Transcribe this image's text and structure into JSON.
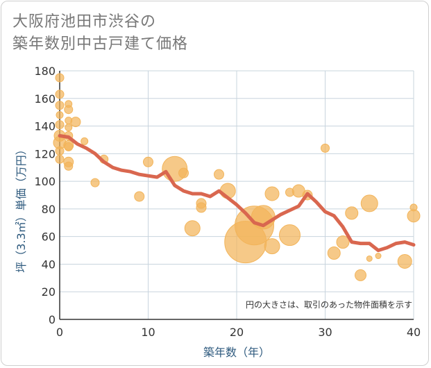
{
  "title_line1": "大阪府池田市渋谷の",
  "title_line2": "築年数別中古戸建て価格",
  "chart_data": {
    "type": "scatter+line",
    "xlabel": "築年数（年）",
    "ylabel": "坪（3.3㎡）単価（万円）",
    "xlim": [
      0,
      40
    ],
    "ylim": [
      0,
      180
    ],
    "xticks": [
      0,
      10,
      20,
      30,
      40
    ],
    "yticks": [
      0,
      20,
      40,
      60,
      80,
      100,
      120,
      140,
      160,
      180
    ],
    "grid": true,
    "note": "円の大きさは、取引のあった物件面積を示す",
    "colors": {
      "bubble": "#f2b45a",
      "line": "#d9674f",
      "grid": "#c8d4de",
      "axis": "#333333"
    },
    "trend": {
      "x": [
        0,
        1,
        2,
        3,
        4,
        5,
        6,
        7,
        8,
        9,
        10,
        11,
        12,
        13,
        14,
        15,
        16,
        17,
        18,
        19,
        20,
        21,
        22,
        23,
        24,
        25,
        26,
        27,
        28,
        29,
        30,
        31,
        32,
        33,
        34,
        35,
        36,
        37,
        38,
        39,
        40
      ],
      "y": [
        133,
        132,
        127,
        124,
        120,
        114,
        110,
        108,
        107,
        105,
        104,
        103,
        107,
        97,
        93,
        91,
        91,
        89,
        93,
        88,
        83,
        77,
        70,
        68,
        72,
        76,
        79,
        82,
        91,
        85,
        78,
        75,
        67,
        56,
        55,
        55,
        50,
        52,
        55,
        56,
        54
      ]
    },
    "bubbles": [
      {
        "x": 0,
        "y": 175,
        "s": 6
      },
      {
        "x": 0,
        "y": 163,
        "s": 6
      },
      {
        "x": 0,
        "y": 155,
        "s": 6
      },
      {
        "x": 0,
        "y": 148,
        "s": 5
      },
      {
        "x": 0,
        "y": 141,
        "s": 6
      },
      {
        "x": 0,
        "y": 133,
        "s": 8
      },
      {
        "x": 0,
        "y": 128,
        "s": 9
      },
      {
        "x": 0,
        "y": 122,
        "s": 6
      },
      {
        "x": 0,
        "y": 116,
        "s": 6
      },
      {
        "x": 1,
        "y": 156,
        "s": 5
      },
      {
        "x": 1,
        "y": 152,
        "s": 6
      },
      {
        "x": 1,
        "y": 144,
        "s": 5
      },
      {
        "x": 1,
        "y": 139,
        "s": 5
      },
      {
        "x": 1,
        "y": 133,
        "s": 6
      },
      {
        "x": 1,
        "y": 126,
        "s": 7
      },
      {
        "x": 1,
        "y": 125,
        "s": 6
      },
      {
        "x": 1,
        "y": 114,
        "s": 7
      },
      {
        "x": 1,
        "y": 111,
        "s": 6
      },
      {
        "x": 1.8,
        "y": 143,
        "s": 7
      },
      {
        "x": 2.8,
        "y": 129,
        "s": 5
      },
      {
        "x": 4,
        "y": 99,
        "s": 6
      },
      {
        "x": 5,
        "y": 116,
        "s": 6
      },
      {
        "x": 9,
        "y": 89,
        "s": 7
      },
      {
        "x": 10,
        "y": 114,
        "s": 7
      },
      {
        "x": 13,
        "y": 109,
        "s": 18
      },
      {
        "x": 14,
        "y": 106,
        "s": 7
      },
      {
        "x": 15,
        "y": 66,
        "s": 11
      },
      {
        "x": 16,
        "y": 84,
        "s": 7
      },
      {
        "x": 16,
        "y": 81,
        "s": 7
      },
      {
        "x": 18,
        "y": 105,
        "s": 7
      },
      {
        "x": 19,
        "y": 93,
        "s": 11
      },
      {
        "x": 21,
        "y": 56,
        "s": 30
      },
      {
        "x": 22,
        "y": 68,
        "s": 28
      },
      {
        "x": 23,
        "y": 74,
        "s": 17
      },
      {
        "x": 24,
        "y": 91,
        "s": 10
      },
      {
        "x": 24,
        "y": 53,
        "s": 11
      },
      {
        "x": 26,
        "y": 92,
        "s": 6
      },
      {
        "x": 26,
        "y": 61,
        "s": 15
      },
      {
        "x": 27,
        "y": 93,
        "s": 9
      },
      {
        "x": 28,
        "y": 90,
        "s": 7
      },
      {
        "x": 30,
        "y": 124,
        "s": 6
      },
      {
        "x": 31,
        "y": 48,
        "s": 9
      },
      {
        "x": 32,
        "y": 56,
        "s": 9
      },
      {
        "x": 33,
        "y": 77,
        "s": 9
      },
      {
        "x": 34,
        "y": 32,
        "s": 8
      },
      {
        "x": 35,
        "y": 84,
        "s": 12
      },
      {
        "x": 35,
        "y": 44,
        "s": 4
      },
      {
        "x": 36,
        "y": 46,
        "s": 4
      },
      {
        "x": 39,
        "y": 42,
        "s": 10
      },
      {
        "x": 40,
        "y": 75,
        "s": 9
      },
      {
        "x": 40,
        "y": 81,
        "s": 5
      }
    ]
  }
}
